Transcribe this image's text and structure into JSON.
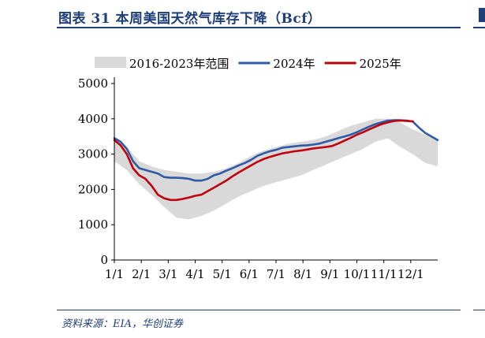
{
  "figure": {
    "title": "图表 31 本周美国天然气库存下降（Bcf）",
    "source": "资料来源：EIA，华创证券"
  },
  "chart_data": {
    "type": "line",
    "title": "",
    "xlabel": "",
    "ylabel": "",
    "ylim": [
      0,
      5000
    ],
    "yticks": [
      0,
      1000,
      2000,
      3000,
      4000,
      5000
    ],
    "xticks": [
      "1/1",
      "2/1",
      "3/1",
      "4/1",
      "5/1",
      "6/1",
      "7/1",
      "8/1",
      "9/1",
      "10/1",
      "11/1",
      "12/1"
    ],
    "xlim": [
      0,
      52
    ],
    "legend": {
      "position": "top",
      "entries": [
        {
          "label": "2016-2023年范围",
          "kind": "band",
          "color": "#d9d9d9"
        },
        {
          "label": "2024年",
          "kind": "line",
          "color": "#2e5aa6"
        },
        {
          "label": "2025年",
          "kind": "line",
          "color": "#c0000b"
        }
      ]
    },
    "grid": false,
    "band": {
      "name": "2016-2023年范围",
      "color": "#d9d9d9",
      "x": [
        0,
        2,
        4,
        6,
        8,
        10,
        12,
        14,
        16,
        18,
        20,
        22,
        24,
        26,
        28,
        30,
        32,
        34,
        36,
        38,
        40,
        42,
        44,
        46,
        48,
        50,
        52
      ],
      "upper": [
        3450,
        3200,
        2800,
        2650,
        2550,
        2500,
        2450,
        2450,
        2500,
        2600,
        2750,
        2950,
        3100,
        3200,
        3300,
        3350,
        3400,
        3500,
        3650,
        3800,
        3900,
        4000,
        4000,
        3900,
        3700,
        3550,
        3400
      ],
      "lower": [
        2800,
        2550,
        2150,
        1850,
        1500,
        1200,
        1150,
        1250,
        1400,
        1600,
        1800,
        1950,
        2100,
        2200,
        2300,
        2400,
        2550,
        2700,
        2850,
        3000,
        3150,
        3350,
        3450,
        3200,
        3000,
        2750,
        2650
      ]
    },
    "series": [
      {
        "name": "2024年",
        "color": "#2e5aa6",
        "x": [
          0,
          1,
          2,
          3,
          4,
          5,
          6,
          7,
          8,
          9,
          10,
          11,
          12,
          13,
          14,
          15,
          16,
          17,
          18,
          19,
          20,
          21,
          22,
          23,
          24,
          25,
          26,
          27,
          28,
          29,
          30,
          31,
          32,
          33,
          34,
          35,
          36,
          37,
          38,
          39,
          40,
          41,
          42,
          43,
          44,
          45,
          46,
          47,
          48,
          49,
          50,
          51,
          52
        ],
        "values": [
          3450,
          3350,
          3150,
          2800,
          2600,
          2550,
          2500,
          2450,
          2350,
          2330,
          2330,
          2320,
          2300,
          2250,
          2250,
          2300,
          2400,
          2450,
          2530,
          2600,
          2680,
          2750,
          2840,
          2950,
          3020,
          3080,
          3120,
          3180,
          3200,
          3220,
          3240,
          3250,
          3270,
          3300,
          3350,
          3400,
          3450,
          3500,
          3550,
          3620,
          3700,
          3780,
          3850,
          3900,
          3950,
          3960,
          3960,
          3950,
          3920,
          3750,
          3600,
          3500,
          3400
        ]
      },
      {
        "name": "2025年",
        "color": "#c0000b",
        "x": [
          0,
          1,
          2,
          3,
          4,
          5,
          6,
          7,
          8,
          9,
          10,
          11,
          12,
          13,
          14,
          15,
          16,
          17,
          18,
          19,
          20,
          21,
          22,
          23,
          24,
          25,
          26,
          27,
          28,
          29,
          30,
          31,
          32,
          33,
          34,
          35,
          36,
          37,
          38,
          39,
          40,
          41,
          42,
          43,
          44,
          45,
          46,
          47,
          48
        ],
        "values": [
          3400,
          3250,
          3000,
          2600,
          2400,
          2300,
          2100,
          1850,
          1750,
          1700,
          1700,
          1730,
          1770,
          1820,
          1850,
          1950,
          2050,
          2150,
          2250,
          2370,
          2480,
          2580,
          2680,
          2780,
          2860,
          2920,
          2970,
          3020,
          3050,
          3080,
          3100,
          3130,
          3160,
          3180,
          3200,
          3230,
          3300,
          3380,
          3460,
          3550,
          3620,
          3700,
          3780,
          3850,
          3900,
          3940,
          3950,
          3940,
          3930
        ]
      }
    ]
  }
}
